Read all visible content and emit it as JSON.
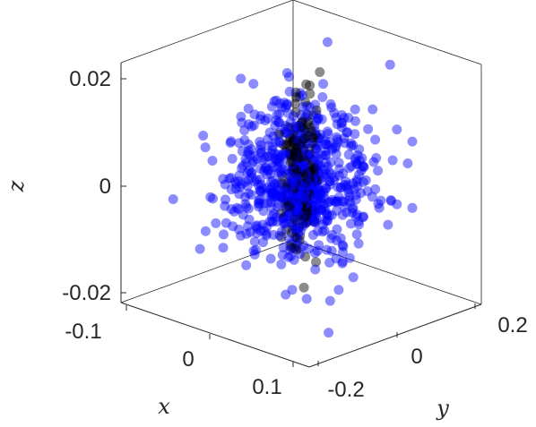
{
  "chart_data": {
    "type": "scatter",
    "title": "",
    "projection": "3d",
    "xlabel": "x",
    "ylabel": "y",
    "zlabel": "z",
    "xlim": [
      -0.15,
      0.15
    ],
    "ylim": [
      -0.25,
      0.25
    ],
    "zlim": [
      -0.025,
      0.025
    ],
    "x_ticks": [
      "-0.1",
      "0",
      "0.1"
    ],
    "y_ticks": [
      "-0.2",
      "0",
      "0.2"
    ],
    "z_ticks": [
      "-0.02",
      "0",
      "0.02"
    ],
    "grid": false,
    "box": true,
    "marker": "filled circle, semi-transparent",
    "series": [
      {
        "color": "#0000ff",
        "opacity": 0.45,
        "distribution": "approximately Gaussian cloud centred at origin",
        "point_count": 700,
        "std_x": 0.045,
        "std_y": 0.07,
        "std_z": 0.008
      },
      {
        "color": "#000000",
        "opacity": 0.45,
        "distribution": "narrow vertical column centred near origin",
        "point_count": 160,
        "std_x": 0.012,
        "std_y": 0.015,
        "std_z": 0.0085
      }
    ]
  }
}
